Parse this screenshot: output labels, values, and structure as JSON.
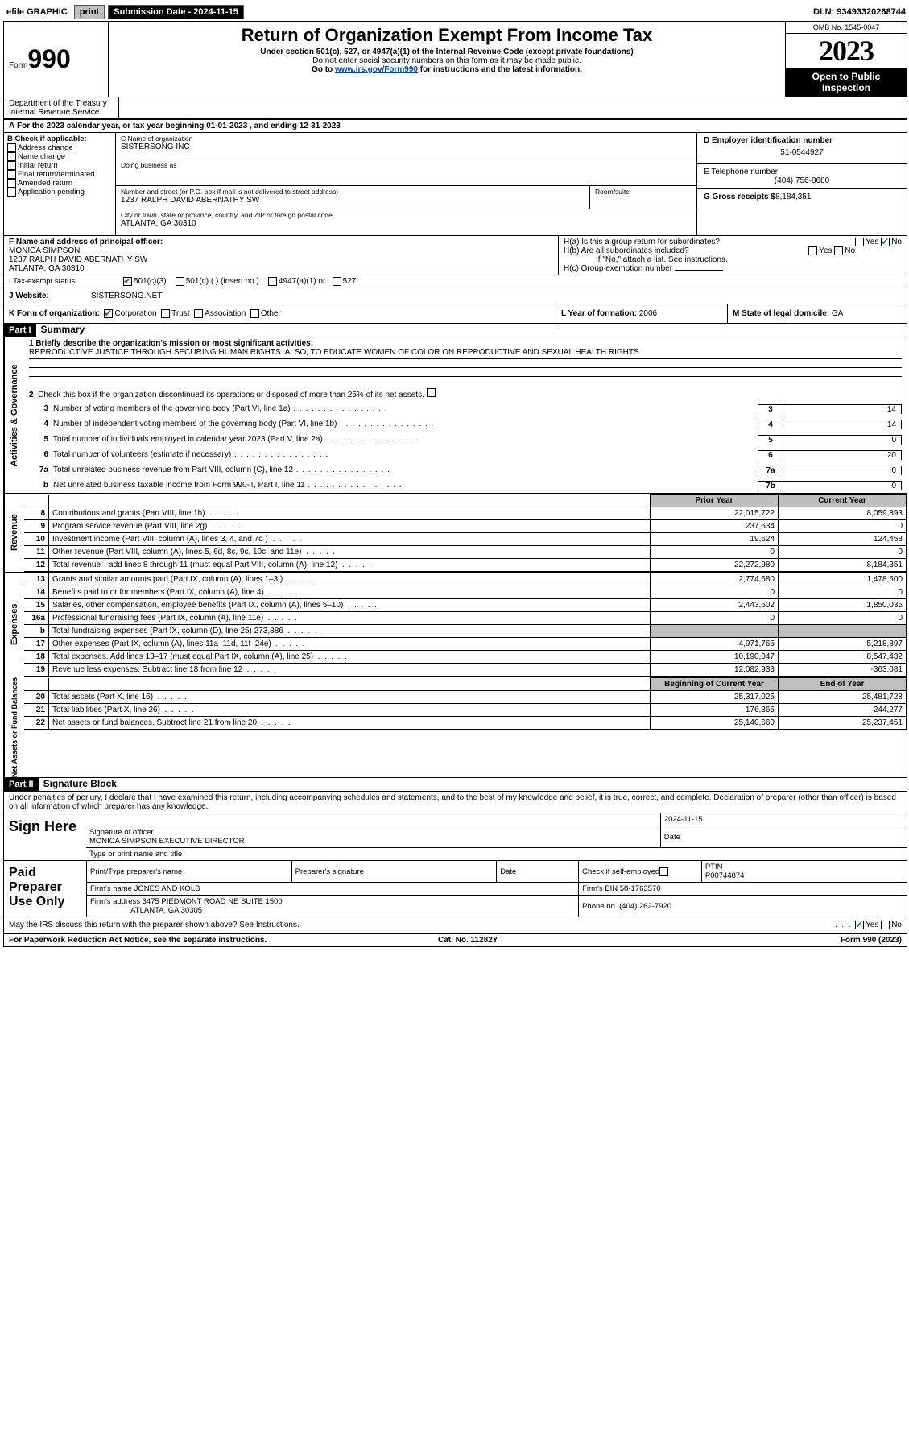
{
  "topbar": {
    "efile_label": "efile GRAPHIC",
    "print_btn": "print",
    "submission_label": "Submission Date - 2024-11-15",
    "dln": "DLN: 93493320268744"
  },
  "header": {
    "form_word": "Form",
    "form_num": "990",
    "title": "Return of Organization Exempt From Income Tax",
    "subtitle1": "Under section 501(c), 527, or 4947(a)(1) of the Internal Revenue Code (except private foundations)",
    "subtitle2": "Do not enter social security numbers on this form as it may be made public.",
    "goto_pre": "Go to ",
    "goto_link": "www.irs.gov/Form990",
    "goto_post": " for instructions and the latest information.",
    "omb": "OMB No. 1545-0047",
    "year": "2023",
    "open": "Open to Public Inspection",
    "dept": "Department of the Treasury\nInternal Revenue Service"
  },
  "period": {
    "a_label": "A",
    "text": "For the 2023 calendar year, or tax year beginning 01-01-2023    , and ending 12-31-2023"
  },
  "boxB": {
    "hdr": "B Check if applicable:",
    "items": [
      "Address change",
      "Name change",
      "Initial return",
      "Final return/terminated",
      "Amended return",
      "Application pending"
    ]
  },
  "boxC": {
    "name_lbl": "C Name of organization",
    "name_val": "SISTERSONG INC",
    "dba_lbl": "Doing business as",
    "dba_val": "",
    "addr_lbl": "Number and street (or P.O. box if mail is not delivered to street address)",
    "addr_val": "1237 RALPH DAVID ABERNATHY SW",
    "room_lbl": "Room/suite",
    "city_lbl": "City or town, state or province, country, and ZIP or foreign postal code",
    "city_val": "ATLANTA, GA  30310"
  },
  "boxD": {
    "lbl": "D Employer identification number",
    "val": "51-0544927"
  },
  "boxE": {
    "lbl": "E Telephone number",
    "val": "(404) 756-8680"
  },
  "boxG": {
    "lbl": "G Gross receipts $",
    "val": "8,184,351"
  },
  "boxF": {
    "lbl": "F Name and address of principal officer:",
    "name": "MONICA SIMPSON",
    "addr1": "1237 RALPH DAVID ABERNATHY SW",
    "addr2": "ATLANTA, GA  30310"
  },
  "boxH": {
    "a": "H(a)  Is this a group return for subordinates?",
    "b": "H(b)  Are all subordinates included?",
    "note": "If \"No,\" attach a list. See instructions.",
    "c": "H(c)  Group exemption number ",
    "yes": "Yes",
    "no": "No"
  },
  "taxexempt": {
    "lbl": "I    Tax-exempt status:",
    "o1": "501(c)(3)",
    "o2": "501(c) (  ) (insert no.)",
    "o3": "4947(a)(1) or",
    "o4": "527"
  },
  "website": {
    "lbl": "J    Website: ",
    "val": "SISTERSONG.NET"
  },
  "boxK": {
    "lbl": "K Form of organization:",
    "o1": "Corporation",
    "o2": "Trust",
    "o3": "Association",
    "o4": "Other"
  },
  "boxL": {
    "lbl": "L Year of formation: ",
    "val": "2006"
  },
  "boxM": {
    "lbl": "M State of legal domicile: ",
    "val": "GA"
  },
  "part1": {
    "hdr": "Part I",
    "title": "Summary",
    "q1_lbl": "1  Briefly describe the organization's mission or most significant activities:",
    "q1_val": "REPRODUCTIVE JUSTICE THROUGH SECURING HUMAN RIGHTS. ALSO, TO EDUCATE WOMEN OF COLOR ON REPRODUCTIVE AND SEXUAL HEALTH RIGHTS.",
    "q2": "Check this box         if the organization discontinued its operations or disposed of more than 25% of its net assets.",
    "tabs": {
      "gov": "Activities & Governance",
      "rev": "Revenue",
      "exp": "Expenses",
      "net": "Net Assets or Fund Balances"
    },
    "rows_gov": [
      {
        "n": "3",
        "t": "Number of voting members of the governing body (Part VI, line 1a)",
        "bn": "3",
        "bv": "14"
      },
      {
        "n": "4",
        "t": "Number of independent voting members of the governing body (Part VI, line 1b)",
        "bn": "4",
        "bv": "14"
      },
      {
        "n": "5",
        "t": "Total number of individuals employed in calendar year 2023 (Part V, line 2a)",
        "bn": "5",
        "bv": "0"
      },
      {
        "n": "6",
        "t": "Total number of volunteers (estimate if necessary)",
        "bn": "6",
        "bv": "20"
      },
      {
        "n": "7a",
        "t": "Total unrelated business revenue from Part VIII, column (C), line 12",
        "bn": "7a",
        "bv": "0"
      },
      {
        "n": "b",
        "t": "Net unrelated business taxable income from Form 990-T, Part I, line 11",
        "bn": "7b",
        "bv": "0"
      }
    ],
    "fin_hdr_py": "Prior Year",
    "fin_hdr_cy": "Current Year",
    "rows_rev": [
      {
        "n": "8",
        "t": "Contributions and grants (Part VIII, line 1h)",
        "py": "22,015,722",
        "cy": "8,059,893"
      },
      {
        "n": "9",
        "t": "Program service revenue (Part VIII, line 2g)",
        "py": "237,634",
        "cy": "0"
      },
      {
        "n": "10",
        "t": "Investment income (Part VIII, column (A), lines 3, 4, and 7d )",
        "py": "19,624",
        "cy": "124,458"
      },
      {
        "n": "11",
        "t": "Other revenue (Part VIII, column (A), lines 5, 6d, 8c, 9c, 10c, and 11e)",
        "py": "0",
        "cy": "0"
      },
      {
        "n": "12",
        "t": "Total revenue—add lines 8 through 11 (must equal Part VIII, column (A), line 12)",
        "py": "22,272,980",
        "cy": "8,184,351"
      }
    ],
    "rows_exp": [
      {
        "n": "13",
        "t": "Grants and similar amounts paid (Part IX, column (A), lines 1–3 )",
        "py": "2,774,680",
        "cy": "1,478,500"
      },
      {
        "n": "14",
        "t": "Benefits paid to or for members (Part IX, column (A), line 4)",
        "py": "0",
        "cy": "0"
      },
      {
        "n": "15",
        "t": "Salaries, other compensation, employee benefits (Part IX, column (A), lines 5–10)",
        "py": "2,443,602",
        "cy": "1,850,035"
      },
      {
        "n": "16a",
        "t": "Professional fundraising fees (Part IX, column (A), line 11e)",
        "py": "0",
        "cy": "0"
      },
      {
        "n": "b",
        "t": "Total fundraising expenses (Part IX, column (D), line 25) 273,886",
        "py": "",
        "cy": "",
        "gray": true
      },
      {
        "n": "17",
        "t": "Other expenses (Part IX, column (A), lines 11a–11d, 11f–24e)",
        "py": "4,971,765",
        "cy": "5,218,897"
      },
      {
        "n": "18",
        "t": "Total expenses. Add lines 13–17 (must equal Part IX, column (A), line 25)",
        "py": "10,190,047",
        "cy": "8,547,432"
      },
      {
        "n": "19",
        "t": "Revenue less expenses. Subtract line 18 from line 12",
        "py": "12,082,933",
        "cy": "-363,081"
      }
    ],
    "net_hdr_py": "Beginning of Current Year",
    "net_hdr_cy": "End of Year",
    "rows_net": [
      {
        "n": "20",
        "t": "Total assets (Part X, line 16)",
        "py": "25,317,025",
        "cy": "25,481,728"
      },
      {
        "n": "21",
        "t": "Total liabilities (Part X, line 26)",
        "py": "176,365",
        "cy": "244,277"
      },
      {
        "n": "22",
        "t": "Net assets or fund balances. Subtract line 21 from line 20",
        "py": "25,140,660",
        "cy": "25,237,451"
      }
    ]
  },
  "part2": {
    "hdr": "Part II",
    "title": "Signature Block",
    "penalty": "Under penalties of perjury, I declare that I have examined this return, including accompanying schedules and statements, and to the best of my knowledge and belief, it is true, correct, and complete. Declaration of preparer (other than officer) is based on all information of which preparer has any knowledge."
  },
  "sign": {
    "here": "Sign Here",
    "sig_lbl": "Signature of officer",
    "name": "MONICA SIMPSON  EXECUTIVE DIRECTOR",
    "name_lbl": "Type or print name and title",
    "date_lbl": "Date",
    "date": "2024-11-15"
  },
  "paid": {
    "title": "Paid Preparer Use Only",
    "pname_lbl": "Print/Type preparer's name",
    "psig_lbl": "Preparer's signature",
    "pdate_lbl": "Date",
    "self_lbl": "Check         if self-employed",
    "ptin_lbl": "PTIN",
    "ptin": "P00744874",
    "firm_lbl": "Firm's name   ",
    "firm": "JONES AND KOLB",
    "ein_lbl": "Firm's EIN  ",
    "ein": "58-1763570",
    "addr_lbl": "Firm's address ",
    "addr1": "3475 PIEDMONT ROAD NE SUITE 1500",
    "addr2": "ATLANTA, GA  30305",
    "phone_lbl": "Phone no. ",
    "phone": "(404) 262-7920"
  },
  "discuss": {
    "q": "May the IRS discuss this return with the preparer shown above? See Instructions.",
    "yes": "Yes",
    "no": "No"
  },
  "footer": {
    "left": "For Paperwork Reduction Act Notice, see the separate instructions.",
    "mid": "Cat. No. 11282Y",
    "right": "Form 990 (2023)"
  }
}
